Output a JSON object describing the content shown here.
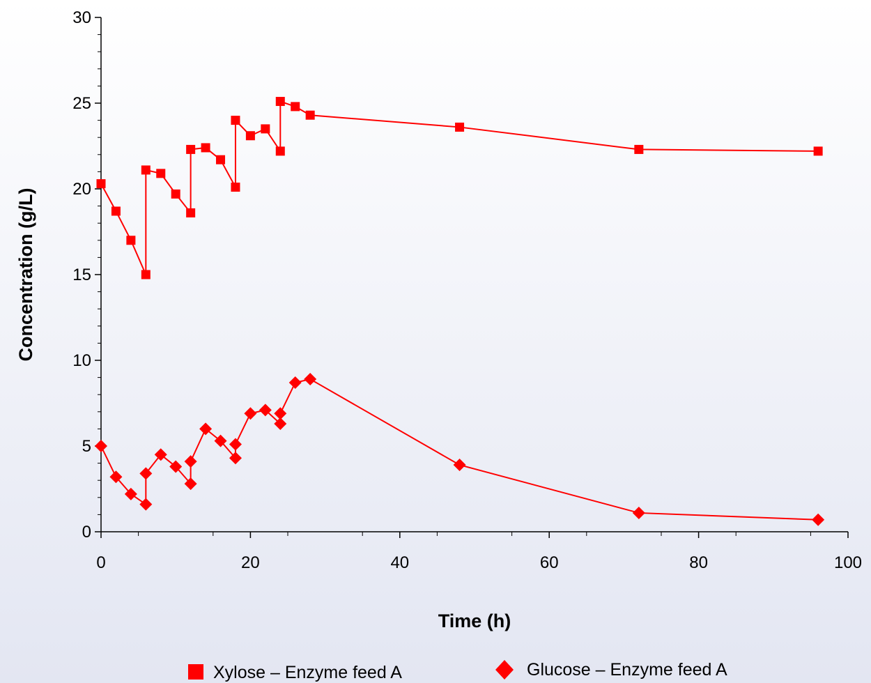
{
  "chart_data": {
    "type": "line",
    "title": "",
    "xlabel": "Time (h)",
    "ylabel": "Concentration (g/L)",
    "xlim": [
      0,
      100
    ],
    "ylim": [
      0,
      30
    ],
    "x_ticks": [
      "0",
      "20",
      "40",
      "60",
      "80",
      "100"
    ],
    "y_ticks": [
      "0",
      "5",
      "10",
      "15",
      "20",
      "25",
      "30"
    ],
    "grid": false,
    "legend_position": "bottom",
    "series": [
      {
        "name": "Xylose – Enzyme feed A",
        "color": "#ff0000",
        "marker": "square",
        "points": [
          [
            0,
            20.3
          ],
          [
            2,
            18.7
          ],
          [
            4,
            17.0
          ],
          [
            6,
            15.0
          ],
          [
            6,
            21.1
          ],
          [
            8,
            20.9
          ],
          [
            10,
            19.7
          ],
          [
            12,
            18.6
          ],
          [
            12,
            22.3
          ],
          [
            14,
            22.4
          ],
          [
            16,
            21.7
          ],
          [
            18,
            20.1
          ],
          [
            18,
            24.0
          ],
          [
            20,
            23.1
          ],
          [
            22,
            23.5
          ],
          [
            24,
            22.2
          ],
          [
            24,
            25.1
          ],
          [
            26,
            24.8
          ],
          [
            28,
            24.3
          ],
          [
            48,
            23.6
          ],
          [
            72,
            22.3
          ],
          [
            96,
            22.2
          ]
        ]
      },
      {
        "name": "Glucose – Enzyme feed A",
        "color": "#ff0000",
        "marker": "diamond",
        "points": [
          [
            0,
            5.0
          ],
          [
            2,
            3.2
          ],
          [
            4,
            2.2
          ],
          [
            6,
            1.6
          ],
          [
            6,
            3.4
          ],
          [
            8,
            4.5
          ],
          [
            10,
            3.8
          ],
          [
            12,
            2.8
          ],
          [
            12,
            4.1
          ],
          [
            14,
            6.0
          ],
          [
            16,
            5.3
          ],
          [
            18,
            4.3
          ],
          [
            18,
            5.1
          ],
          [
            20,
            6.9
          ],
          [
            22,
            7.1
          ],
          [
            24,
            6.3
          ],
          [
            24,
            6.9
          ],
          [
            26,
            8.7
          ],
          [
            28,
            8.9
          ],
          [
            48,
            3.9
          ],
          [
            72,
            1.1
          ],
          [
            96,
            0.7
          ]
        ]
      }
    ]
  }
}
